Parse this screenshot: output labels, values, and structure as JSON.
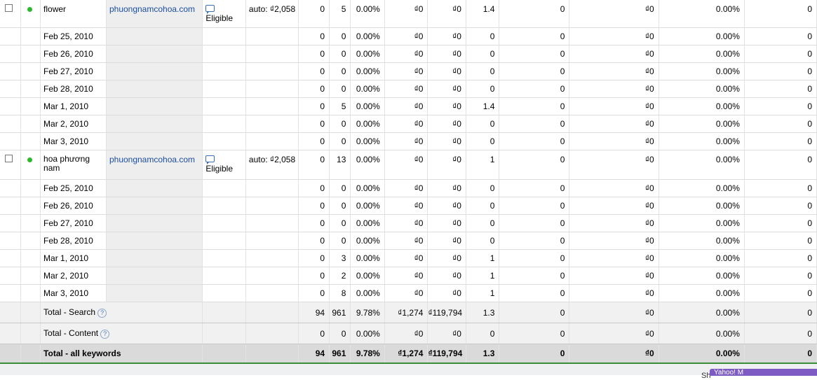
{
  "keywords": [
    {
      "name": "flower",
      "site": "phuongnamcohoa.com",
      "status": "Eligible",
      "bid": "auto: ₫2,058",
      "clicks": "0",
      "impr": "5",
      "ctr": "0.00%",
      "cpc": "₫0",
      "cost": "₫0",
      "pos": "1.4",
      "conv": "0",
      "cpconv": "₫0",
      "convrate": "0.00%",
      "viewconv": "0",
      "days": [
        {
          "date": "Feb 25, 2010",
          "clicks": "0",
          "impr": "0",
          "ctr": "0.00%",
          "cpc": "₫0",
          "cost": "₫0",
          "pos": "0",
          "conv": "0",
          "cpconv": "₫0",
          "convrate": "0.00%",
          "viewconv": "0"
        },
        {
          "date": "Feb 26, 2010",
          "clicks": "0",
          "impr": "0",
          "ctr": "0.00%",
          "cpc": "₫0",
          "cost": "₫0",
          "pos": "0",
          "conv": "0",
          "cpconv": "₫0",
          "convrate": "0.00%",
          "viewconv": "0"
        },
        {
          "date": "Feb 27, 2010",
          "clicks": "0",
          "impr": "0",
          "ctr": "0.00%",
          "cpc": "₫0",
          "cost": "₫0",
          "pos": "0",
          "conv": "0",
          "cpconv": "₫0",
          "convrate": "0.00%",
          "viewconv": "0"
        },
        {
          "date": "Feb 28, 2010",
          "clicks": "0",
          "impr": "0",
          "ctr": "0.00%",
          "cpc": "₫0",
          "cost": "₫0",
          "pos": "0",
          "conv": "0",
          "cpconv": "₫0",
          "convrate": "0.00%",
          "viewconv": "0"
        },
        {
          "date": "Mar 1, 2010",
          "clicks": "0",
          "impr": "5",
          "ctr": "0.00%",
          "cpc": "₫0",
          "cost": "₫0",
          "pos": "1.4",
          "conv": "0",
          "cpconv": "₫0",
          "convrate": "0.00%",
          "viewconv": "0"
        },
        {
          "date": "Mar 2, 2010",
          "clicks": "0",
          "impr": "0",
          "ctr": "0.00%",
          "cpc": "₫0",
          "cost": "₫0",
          "pos": "0",
          "conv": "0",
          "cpconv": "₫0",
          "convrate": "0.00%",
          "viewconv": "0"
        },
        {
          "date": "Mar 3, 2010",
          "clicks": "0",
          "impr": "0",
          "ctr": "0.00%",
          "cpc": "₫0",
          "cost": "₫0",
          "pos": "0",
          "conv": "0",
          "cpconv": "₫0",
          "convrate": "0.00%",
          "viewconv": "0"
        }
      ]
    },
    {
      "name_line1": "hoa phương",
      "name_line2": "nam",
      "site": "phuongnamcohoa.com",
      "status": "Eligible",
      "bid": "auto: ₫2,058",
      "clicks": "0",
      "impr": "13",
      "ctr": "0.00%",
      "cpc": "₫0",
      "cost": "₫0",
      "pos": "1",
      "conv": "0",
      "cpconv": "₫0",
      "convrate": "0.00%",
      "viewconv": "0",
      "days": [
        {
          "date": "Feb 25, 2010",
          "clicks": "0",
          "impr": "0",
          "ctr": "0.00%",
          "cpc": "₫0",
          "cost": "₫0",
          "pos": "0",
          "conv": "0",
          "cpconv": "₫0",
          "convrate": "0.00%",
          "viewconv": "0"
        },
        {
          "date": "Feb 26, 2010",
          "clicks": "0",
          "impr": "0",
          "ctr": "0.00%",
          "cpc": "₫0",
          "cost": "₫0",
          "pos": "0",
          "conv": "0",
          "cpconv": "₫0",
          "convrate": "0.00%",
          "viewconv": "0"
        },
        {
          "date": "Feb 27, 2010",
          "clicks": "0",
          "impr": "0",
          "ctr": "0.00%",
          "cpc": "₫0",
          "cost": "₫0",
          "pos": "0",
          "conv": "0",
          "cpconv": "₫0",
          "convrate": "0.00%",
          "viewconv": "0"
        },
        {
          "date": "Feb 28, 2010",
          "clicks": "0",
          "impr": "0",
          "ctr": "0.00%",
          "cpc": "₫0",
          "cost": "₫0",
          "pos": "0",
          "conv": "0",
          "cpconv": "₫0",
          "convrate": "0.00%",
          "viewconv": "0"
        },
        {
          "date": "Mar 1, 2010",
          "clicks": "0",
          "impr": "3",
          "ctr": "0.00%",
          "cpc": "₫0",
          "cost": "₫0",
          "pos": "1",
          "conv": "0",
          "cpconv": "₫0",
          "convrate": "0.00%",
          "viewconv": "0"
        },
        {
          "date": "Mar 2, 2010",
          "clicks": "0",
          "impr": "2",
          "ctr": "0.00%",
          "cpc": "₫0",
          "cost": "₫0",
          "pos": "1",
          "conv": "0",
          "cpconv": "₫0",
          "convrate": "0.00%",
          "viewconv": "0"
        },
        {
          "date": "Mar 3, 2010",
          "clicks": "0",
          "impr": "8",
          "ctr": "0.00%",
          "cpc": "₫0",
          "cost": "₫0",
          "pos": "1",
          "conv": "0",
          "cpconv": "₫0",
          "convrate": "0.00%",
          "viewconv": "0"
        }
      ]
    }
  ],
  "totals": [
    {
      "label": "Total - Search",
      "clicks": "94",
      "impr": "961",
      "ctr": "9.78%",
      "cpc": "₫1,274",
      "cost": "₫119,794",
      "pos": "1.3",
      "conv": "0",
      "cpconv": "₫0",
      "convrate": "0.00%",
      "viewconv": "0"
    },
    {
      "label": "Total - Content",
      "clicks": "0",
      "impr": "0",
      "ctr": "0.00%",
      "cpc": "₫0",
      "cost": "₫0",
      "pos": "0",
      "conv": "0",
      "cpconv": "₫0",
      "convrate": "0.00%",
      "viewconv": "0"
    }
  ],
  "grand_total": {
    "label": "Total - all keywords",
    "clicks": "94",
    "impr": "961",
    "ctr": "9.78%",
    "cpc": "₫1,274",
    "cost": "₫119,794",
    "pos": "1.3",
    "conv": "0",
    "cpconv": "₫0",
    "convrate": "0.00%",
    "viewconv": "0"
  },
  "footer": {
    "left_text": "Sh",
    "tab_text": "Yahoo! M"
  },
  "help_glyph": "?",
  "colors": {
    "status_dot": "#2db82d",
    "link": "#1b4ea0",
    "accent_line": "#3a8c3a",
    "tab": "#7e5bc2"
  }
}
